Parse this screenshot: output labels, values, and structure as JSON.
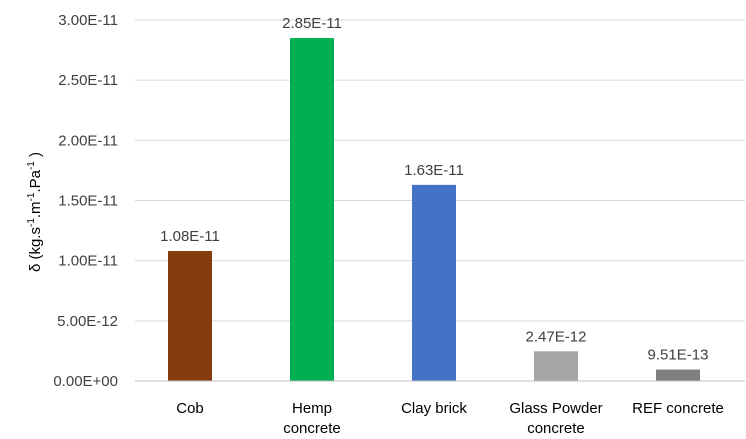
{
  "chart_data": {
    "type": "bar",
    "categories": [
      "Cob",
      "Hemp concrete",
      "Clay brick",
      "Glass Powder concrete",
      "REF concrete"
    ],
    "category_lines": [
      [
        "Cob"
      ],
      [
        "Hemp",
        "concrete"
      ],
      [
        "Clay brick"
      ],
      [
        "Glass Powder",
        "concrete"
      ],
      [
        "REF concrete"
      ]
    ],
    "values": [
      1.08e-11,
      2.85e-11,
      1.63e-11,
      2.47e-12,
      9.51e-13
    ],
    "data_labels": [
      "1.08E-11",
      "2.85E-11",
      "1.63E-11",
      "2.47E-12",
      "9.51E-13"
    ],
    "colors": [
      "#843c0c",
      "#00b050",
      "#4472c4",
      "#a6a6a6",
      "#7f7f7f"
    ],
    "ylim": [
      0,
      3e-11
    ],
    "yticks": [
      0,
      5e-12,
      1e-11,
      1.5e-11,
      2e-11,
      2.5e-11,
      3e-11
    ],
    "ytick_labels": [
      "0.00E+00",
      "5.00E-12",
      "1.00E-11",
      "1.50E-11",
      "2.00E-11",
      "2.50E-11",
      "3.00E-11"
    ],
    "ylabel": {
      "base": "δ (kg.s",
      "sup1": "-1",
      "mid1": ".m",
      "sup2": "-1",
      "mid2": ".Pa",
      "sup3": "-1",
      "end": " )"
    },
    "xlabel": "",
    "title": "",
    "grid": true,
    "legend": false
  }
}
